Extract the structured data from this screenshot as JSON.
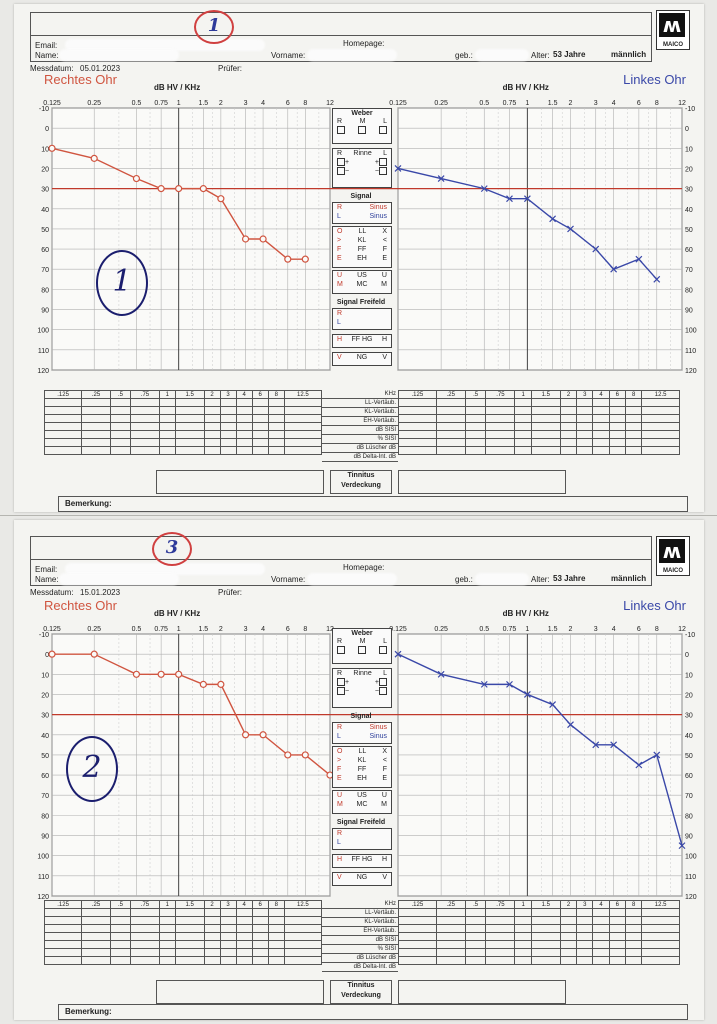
{
  "form": {
    "email_label": "Email:",
    "homepage_label": "Homepage:",
    "name_label": "Name:",
    "vorname_label": "Vorname:",
    "geb_label": "geb.:",
    "alter_label": "Alter:",
    "alter_value": "53 Jahre",
    "sex": "männlich",
    "messdatum_label": "Messdatum:",
    "pruefer_label": "Prüfer:",
    "axis_unit": "dB HV / KHz",
    "right_ear": "Rechtes Ohr",
    "left_ear": "Linkes Ohr",
    "logo_text": "MAICO",
    "freq_ticks": [
      "0.125",
      "0.25",
      "0.5",
      "0.75",
      "1",
      "1.5",
      "2",
      "3",
      "4",
      "6",
      "8",
      "12"
    ],
    "db_ticks": [
      "-10",
      "0",
      "10",
      "20",
      "30",
      "40",
      "50",
      "60",
      "70",
      "80",
      "90",
      "100",
      "110",
      "120"
    ],
    "table_freqs": [
      ".125",
      ".25",
      ".5",
      ".75",
      "1",
      "1.5",
      "2",
      "3",
      "4",
      "6",
      "8",
      "12.5"
    ],
    "table_labels": [
      "KHz",
      "LL-Vertäub.",
      "KL-Vertäub.",
      "EH-Vertäub.",
      "dB        SISI",
      "%         SISI",
      "dB  Lüscher  dB",
      "dB  Delta-Int.  dB"
    ],
    "tinnitus": "Tinnitus",
    "verdeckung": "Verdeckung",
    "bemerkung": "Bemerkung:",
    "weber": {
      "title": "Weber",
      "cols": [
        "R",
        "M",
        "L"
      ]
    },
    "rinne": {
      "title": "Rinne",
      "cols": [
        "R",
        "L"
      ],
      "plus": "+",
      "minus": "−"
    },
    "signal": {
      "title": "Signal",
      "r": "R",
      "l": "L",
      "sinus": "Sinus"
    },
    "legend_rows": [
      [
        "O",
        "LL",
        "X"
      ],
      [
        ">",
        "KL",
        "<"
      ],
      [
        "F",
        "FF",
        "F"
      ],
      [
        "E",
        "EH",
        "E"
      ],
      [
        "U",
        "US",
        "U"
      ],
      [
        "M",
        "MC",
        "M"
      ]
    ],
    "freifeld": {
      "title": "Signal Freifeld",
      "r": "R",
      "l": "L",
      "hg": [
        "H",
        "FF HG",
        "H"
      ],
      "ng": [
        "V",
        "NG",
        "V"
      ]
    },
    "colors": {
      "right": "#d05540",
      "left": "#3a48a8",
      "ref_line": "#c0392b",
      "grid": "#b0b0b0"
    }
  },
  "sheets": [
    {
      "date": "05.01.2023",
      "stamp": "1",
      "hand_number": "1"
    },
    {
      "date": "15.01.2023",
      "stamp": "3",
      "hand_number": "2"
    }
  ],
  "chart_data": [
    {
      "type": "line",
      "x_scale": "log",
      "x": [
        0.125,
        0.25,
        0.5,
        0.75,
        1,
        1.5,
        2,
        3,
        4,
        6,
        8
      ],
      "xlim": [
        0.125,
        12
      ],
      "ylim": [
        -10,
        120
      ],
      "y_inverted": true,
      "reference_line": 30,
      "series": [
        {
          "name": "Rechtes Ohr",
          "values": [
            10,
            15,
            25,
            30,
            30,
            30,
            35,
            55,
            55,
            65,
            65
          ]
        },
        {
          "name": "Linkes Ohr",
          "values": [
            20,
            25,
            30,
            35,
            35,
            45,
            50,
            60,
            70,
            65,
            75
          ]
        }
      ]
    },
    {
      "type": "line",
      "x_scale": "log",
      "x": [
        0.125,
        0.25,
        0.5,
        0.75,
        1,
        1.5,
        2,
        3,
        4,
        6,
        8,
        12
      ],
      "xlim": [
        0.125,
        12
      ],
      "ylim": [
        -10,
        120
      ],
      "y_inverted": true,
      "reference_line": 30,
      "series": [
        {
          "name": "Rechtes Ohr",
          "values": [
            0,
            0,
            10,
            10,
            10,
            15,
            15,
            40,
            40,
            50,
            50,
            60
          ]
        },
        {
          "name": "Linkes Ohr",
          "values": [
            0,
            10,
            15,
            15,
            20,
            25,
            35,
            45,
            45,
            55,
            50,
            95
          ]
        }
      ]
    }
  ]
}
